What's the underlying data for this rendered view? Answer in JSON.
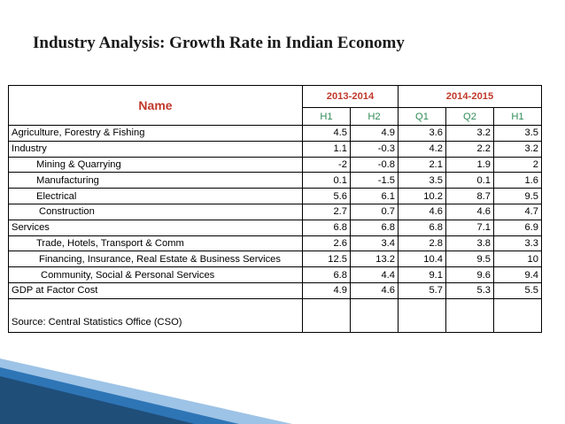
{
  "title": "Industry Analysis: Growth Rate in Indian Economy",
  "table": {
    "name_header": "Name",
    "period_groups": [
      "2013-2014",
      "2014-2015"
    ],
    "sub_headers": [
      "H1",
      "H2",
      "Q1",
      "Q2",
      "H1"
    ],
    "rows": [
      {
        "label": "Agriculture, Forestry & Fishing",
        "indent": 0,
        "values": [
          "4.5",
          "4.9",
          "3.6",
          "3.2",
          "3.5"
        ]
      },
      {
        "label": "Industry",
        "indent": 0,
        "values": [
          "1.1",
          "-0.3",
          "4.2",
          "2.2",
          "3.2"
        ]
      },
      {
        "label": "Mining & Quarrying",
        "indent": 1,
        "values": [
          "-2",
          "-0.8",
          "2.1",
          "1.9",
          "2"
        ]
      },
      {
        "label": "Manufacturing",
        "indent": 1,
        "values": [
          "0.1",
          "-1.5",
          "3.5",
          "0.1",
          "1.6"
        ]
      },
      {
        "label": "Electrical",
        "indent": 1,
        "values": [
          "5.6",
          "6.1",
          "10.2",
          "8.7",
          "9.5"
        ]
      },
      {
        "label": "Construction",
        "indent": 2,
        "values": [
          "2.7",
          "0.7",
          "4.6",
          "4.6",
          "4.7"
        ]
      },
      {
        "label": "Services",
        "indent": 0,
        "values": [
          "6.8",
          "6.8",
          "6.8",
          "7.1",
          "6.9"
        ]
      },
      {
        "label": "Trade, Hotels, Transport & Comm",
        "indent": 1,
        "values": [
          "2.6",
          "3.4",
          "2.8",
          "3.8",
          "3.3"
        ]
      },
      {
        "label": "Financing, Insurance, Real Estate & Business Services",
        "indent": 2,
        "values": [
          "12.5",
          "13.2",
          "10.4",
          "9.5",
          "10"
        ]
      },
      {
        "label": "Community, Social & Personal Services",
        "indent": 3,
        "values": [
          "6.8",
          "4.4",
          "9.1",
          "9.6",
          "9.4"
        ]
      },
      {
        "label": "GDP at Factor Cost",
        "indent": 0,
        "values": [
          "4.9",
          "4.6",
          "5.7",
          "5.3",
          "5.5"
        ]
      }
    ],
    "source": "Source: Central Statistics Office (CSO)"
  },
  "colors": {
    "header_red": "#c0392b",
    "subheader_green": "#2e8b57",
    "band_dark": "#1f4e79",
    "band_mid": "#2e75b6",
    "band_light": "#9dc3e6"
  }
}
